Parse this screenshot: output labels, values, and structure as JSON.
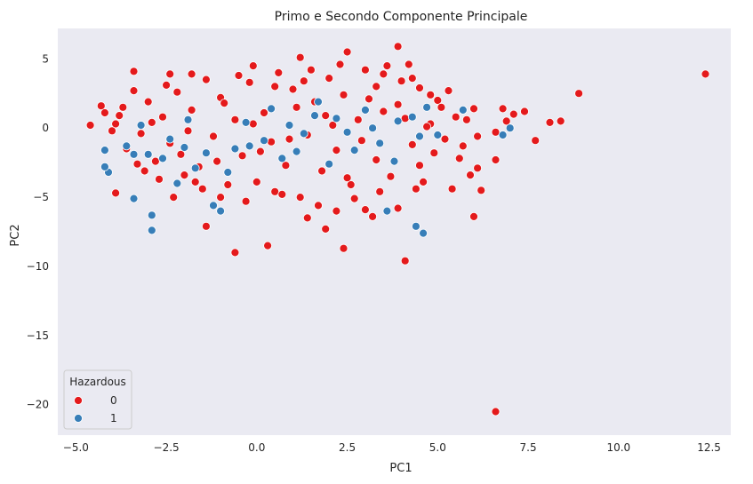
{
  "chart_data": {
    "type": "scatter",
    "title": "Primo e Secondo Componente Principale",
    "xlabel": "PC1",
    "ylabel": "PC2",
    "xlim": [
      -5.5,
      13.1
    ],
    "ylim": [
      -22.2,
      7.2
    ],
    "x_ticks": [
      -5.0,
      -2.5,
      0.0,
      2.5,
      5.0,
      7.5,
      10.0,
      12.5
    ],
    "x_tick_labels": [
      "−5.0",
      "−2.5",
      "0.0",
      "2.5",
      "5.0",
      "7.5",
      "10.0",
      "12.5"
    ],
    "y_ticks": [
      5,
      0,
      -5,
      -10,
      -15,
      -20
    ],
    "y_tick_labels": [
      "5",
      "0",
      "−5",
      "−10",
      "−15",
      "−20"
    ],
    "grid": false,
    "background_color": "#eaeaf2",
    "legend": {
      "title": "Hazardous",
      "placement": "lower-left"
    },
    "series": [
      {
        "name": "0",
        "color": "#e41a1c",
        "points": [
          [
            12.4,
            3.9
          ],
          [
            8.9,
            2.5
          ],
          [
            8.4,
            0.5
          ],
          [
            8.1,
            0.4
          ],
          [
            7.7,
            -0.9
          ],
          [
            7.4,
            1.2
          ],
          [
            7.1,
            1.0
          ],
          [
            6.9,
            0.5
          ],
          [
            6.8,
            1.4
          ],
          [
            6.6,
            -0.3
          ],
          [
            6.6,
            -2.3
          ],
          [
            6.0,
            -6.4
          ],
          [
            6.6,
            -20.5
          ],
          [
            4.1,
            -9.6
          ],
          [
            2.4,
            -8.7
          ],
          [
            0.3,
            -8.5
          ],
          [
            -0.6,
            -9.0
          ],
          [
            -1.4,
            -7.1
          ],
          [
            1.9,
            -7.3
          ],
          [
            3.9,
            -5.8
          ],
          [
            3.0,
            -5.9
          ],
          [
            -2.3,
            -5.0
          ],
          [
            -3.9,
            -4.7
          ],
          [
            -4.6,
            0.2
          ],
          [
            -4.3,
            1.6
          ],
          [
            -3.4,
            4.1
          ],
          [
            -2.4,
            3.9
          ],
          [
            -1.8,
            3.9
          ],
          [
            -0.1,
            4.5
          ],
          [
            1.2,
            5.1
          ],
          [
            2.5,
            5.5
          ],
          [
            3.9,
            5.9
          ],
          [
            4.2,
            4.6
          ],
          [
            5.3,
            2.7
          ],
          [
            6.0,
            1.4
          ],
          [
            6.1,
            -0.6
          ],
          [
            6.1,
            -2.9
          ],
          [
            6.2,
            -4.5
          ],
          [
            5.6,
            -2.2
          ],
          [
            5.8,
            0.6
          ],
          [
            5.4,
            -4.4
          ],
          [
            5.0,
            2.0
          ],
          [
            4.6,
            -3.9
          ],
          [
            4.8,
            0.3
          ],
          [
            4.5,
            2.9
          ],
          [
            4.3,
            -1.2
          ],
          [
            4.0,
            3.4
          ],
          [
            3.7,
            -3.5
          ],
          [
            3.5,
            1.2
          ],
          [
            3.3,
            -2.3
          ],
          [
            3.0,
            4.2
          ],
          [
            2.8,
            0.6
          ],
          [
            2.6,
            -4.1
          ],
          [
            2.4,
            2.4
          ],
          [
            2.2,
            -1.6
          ],
          [
            2.0,
            3.6
          ],
          [
            1.8,
            -3.1
          ],
          [
            1.6,
            1.9
          ],
          [
            1.4,
            -0.5
          ],
          [
            1.2,
            -5.0
          ],
          [
            1.0,
            2.8
          ],
          [
            0.8,
            -2.7
          ],
          [
            0.6,
            4.0
          ],
          [
            0.4,
            -1.0
          ],
          [
            0.2,
            1.1
          ],
          [
            0.0,
            -3.9
          ],
          [
            -0.2,
            3.3
          ],
          [
            -0.4,
            -2.0
          ],
          [
            -0.6,
            0.6
          ],
          [
            -0.8,
            -4.1
          ],
          [
            -1.0,
            2.2
          ],
          [
            -1.2,
            -0.6
          ],
          [
            -1.4,
            3.5
          ],
          [
            -1.6,
            -2.8
          ],
          [
            -1.8,
            1.3
          ],
          [
            -2.0,
            -3.4
          ],
          [
            -2.2,
            2.6
          ],
          [
            -2.4,
            -1.1
          ],
          [
            -2.6,
            0.8
          ],
          [
            -2.8,
            -2.4
          ],
          [
            -3.0,
            1.9
          ],
          [
            -3.2,
            -0.4
          ],
          [
            -3.4,
            2.7
          ],
          [
            -3.6,
            -1.5
          ],
          [
            -3.8,
            0.9
          ],
          [
            -4.0,
            -0.2
          ],
          [
            -4.2,
            1.1
          ],
          [
            -3.9,
            0.3
          ],
          [
            -3.1,
            -3.1
          ],
          [
            -2.5,
            3.1
          ],
          [
            -1.5,
            -4.4
          ],
          [
            -0.5,
            3.8
          ],
          [
            0.5,
            -4.6
          ],
          [
            1.5,
            4.2
          ],
          [
            2.5,
            -3.6
          ],
          [
            3.5,
            3.9
          ],
          [
            4.5,
            -2.7
          ],
          [
            5.1,
            1.5
          ],
          [
            4.9,
            -1.8
          ],
          [
            4.1,
            0.7
          ],
          [
            3.1,
            2.1
          ],
          [
            2.1,
            0.2
          ],
          [
            1.1,
            1.5
          ],
          [
            0.1,
            -1.7
          ],
          [
            -0.9,
            1.8
          ],
          [
            -1.9,
            -0.2
          ],
          [
            -2.9,
            0.4
          ],
          [
            -3.7,
            1.5
          ],
          [
            -2.1,
            -1.9
          ],
          [
            -1.1,
            -2.4
          ],
          [
            -0.1,
            0.3
          ],
          [
            0.9,
            -0.8
          ],
          [
            1.9,
            0.9
          ],
          [
            2.9,
            -0.9
          ],
          [
            3.9,
            1.7
          ],
          [
            4.7,
            0.1
          ],
          [
            5.2,
            -0.8
          ],
          [
            5.5,
            0.8
          ],
          [
            5.7,
            -1.3
          ],
          [
            5.9,
            -3.4
          ],
          [
            3.4,
            -4.6
          ],
          [
            2.7,
            -5.1
          ],
          [
            1.7,
            -5.6
          ],
          [
            0.7,
            -4.8
          ],
          [
            -0.3,
            -5.3
          ],
          [
            -1.0,
            -5.0
          ],
          [
            -1.7,
            -3.9
          ],
          [
            -2.7,
            -3.7
          ],
          [
            -3.3,
            -2.6
          ],
          [
            4.4,
            -4.4
          ],
          [
            3.2,
            -6.4
          ],
          [
            2.2,
            -6.0
          ],
          [
            1.4,
            -6.5
          ],
          [
            0.5,
            3.0
          ],
          [
            1.3,
            3.4
          ],
          [
            2.3,
            4.6
          ],
          [
            3.3,
            3.0
          ],
          [
            4.3,
            3.6
          ],
          [
            4.8,
            2.4
          ],
          [
            3.6,
            4.5
          ]
        ]
      },
      {
        "name": "1",
        "color": "#377eb8",
        "points": [
          [
            -2.9,
            -7.4
          ],
          [
            -2.9,
            -6.3
          ],
          [
            -3.4,
            -5.1
          ],
          [
            -4.1,
            -3.2
          ],
          [
            -4.2,
            -2.8
          ],
          [
            -4.2,
            -1.6
          ],
          [
            -3.6,
            -1.3
          ],
          [
            -3.2,
            0.2
          ],
          [
            -2.6,
            -2.2
          ],
          [
            -2.2,
            -4.0
          ],
          [
            -1.2,
            -5.6
          ],
          [
            -1.0,
            -6.0
          ],
          [
            -0.6,
            -1.5
          ],
          [
            0.2,
            -0.9
          ],
          [
            1.3,
            -0.4
          ],
          [
            2.2,
            0.7
          ],
          [
            3.4,
            -1.1
          ],
          [
            3.6,
            -6.0
          ],
          [
            4.4,
            -7.1
          ],
          [
            4.6,
            -7.6
          ],
          [
            4.7,
            1.5
          ],
          [
            4.3,
            0.8
          ],
          [
            5.0,
            -0.5
          ],
          [
            5.7,
            1.3
          ],
          [
            6.8,
            -0.5
          ],
          [
            7.0,
            0.0
          ],
          [
            3.9,
            0.5
          ],
          [
            2.7,
            -1.6
          ],
          [
            1.6,
            0.9
          ],
          [
            0.7,
            -2.2
          ],
          [
            -0.3,
            0.4
          ],
          [
            -1.4,
            -1.8
          ],
          [
            -1.9,
            0.6
          ],
          [
            -2.4,
            -0.8
          ],
          [
            -3.0,
            -1.9
          ],
          [
            -1.7,
            -2.9
          ],
          [
            0.4,
            1.4
          ],
          [
            1.1,
            -1.7
          ],
          [
            2.0,
            -2.6
          ],
          [
            3.0,
            1.3
          ],
          [
            3.8,
            -2.4
          ],
          [
            4.5,
            -0.6
          ],
          [
            -0.8,
            -3.2
          ],
          [
            -2.0,
            -1.4
          ],
          [
            -3.4,
            -1.9
          ],
          [
            2.5,
            -0.3
          ],
          [
            1.7,
            1.9
          ],
          [
            -0.2,
            -1.3
          ],
          [
            0.9,
            0.2
          ],
          [
            3.2,
            0.0
          ]
        ]
      }
    ]
  }
}
